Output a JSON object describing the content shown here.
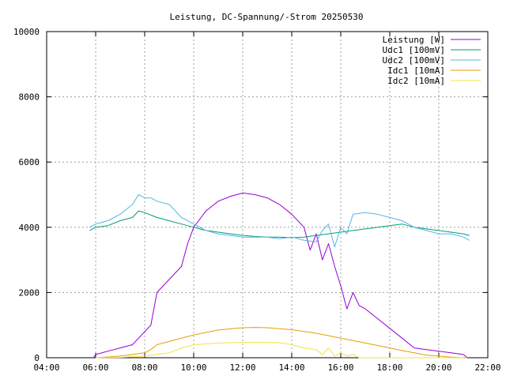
{
  "chart_data": {
    "type": "line",
    "title": "Leistung, DC-Spannung/-Strom 20250530",
    "xlabel": "",
    "ylabel": "",
    "x_ticks": [
      "04:00",
      "06:00",
      "08:00",
      "10:00",
      "12:00",
      "14:00",
      "16:00",
      "18:00",
      "20:00",
      "22:00"
    ],
    "xlim": [
      "04:00",
      "22:00"
    ],
    "y_ticks": [
      "0",
      "2000",
      "4000",
      "6000",
      "8000",
      "10000"
    ],
    "ylim": [
      0,
      10000
    ],
    "grid": true,
    "legend_position": "top-right",
    "series": [
      {
        "name": "Leistung [W]",
        "color": "#9400d3",
        "x": [
          "05:55",
          "06:00",
          "06:30",
          "07:00",
          "07:30",
          "07:45",
          "08:00",
          "08:15",
          "08:30",
          "09:00",
          "09:30",
          "09:45",
          "10:00",
          "10:30",
          "11:00",
          "11:30",
          "12:00",
          "12:30",
          "13:00",
          "13:30",
          "14:00",
          "14:30",
          "14:45",
          "15:00",
          "15:15",
          "15:30",
          "15:45",
          "16:00",
          "16:15",
          "16:30",
          "16:45",
          "17:00",
          "17:30",
          "18:00",
          "18:30",
          "19:00",
          "19:30",
          "20:00",
          "20:30",
          "21:00",
          "21:10"
        ],
        "values": [
          0,
          100,
          200,
          300,
          400,
          600,
          800,
          1000,
          2000,
          2400,
          2800,
          3500,
          4000,
          4500,
          4800,
          4950,
          5050,
          5000,
          4900,
          4700,
          4400,
          4000,
          3300,
          3800,
          3000,
          3500,
          2800,
          2200,
          1500,
          2000,
          1600,
          1500,
          1200,
          900,
          600,
          300,
          250,
          200,
          150,
          100,
          0
        ]
      },
      {
        "name": "Udc1 [100mV]",
        "color": "#009e73",
        "x": [
          "05:45",
          "06:00",
          "06:30",
          "07:00",
          "07:30",
          "07:45",
          "08:00",
          "08:30",
          "09:00",
          "09:30",
          "10:00",
          "10:30",
          "11:00",
          "11:30",
          "12:00",
          "12:30",
          "13:00",
          "13:30",
          "14:00",
          "14:30",
          "15:00",
          "15:30",
          "16:00",
          "16:30",
          "17:00",
          "17:30",
          "18:00",
          "18:30",
          "19:00",
          "19:30",
          "20:00",
          "20:30",
          "21:00",
          "21:15"
        ],
        "values": [
          3900,
          4000,
          4050,
          4200,
          4300,
          4500,
          4450,
          4300,
          4200,
          4100,
          4000,
          3900,
          3850,
          3800,
          3750,
          3720,
          3700,
          3700,
          3680,
          3700,
          3750,
          3800,
          3850,
          3900,
          3950,
          4000,
          4050,
          4100,
          4000,
          3950,
          3900,
          3850,
          3800,
          3750
        ]
      },
      {
        "name": "Udc2 [100mV]",
        "color": "#56b4e9",
        "x": [
          "05:45",
          "06:00",
          "06:30",
          "07:00",
          "07:30",
          "07:45",
          "08:00",
          "08:15",
          "08:30",
          "09:00",
          "09:15",
          "09:30",
          "10:00",
          "10:30",
          "11:00",
          "11:30",
          "12:00",
          "12:30",
          "13:00",
          "13:30",
          "14:00",
          "14:30",
          "15:00",
          "15:15",
          "15:30",
          "15:45",
          "16:00",
          "16:15",
          "16:30",
          "17:00",
          "17:30",
          "18:00",
          "18:30",
          "19:00",
          "19:30",
          "20:00",
          "20:30",
          "21:00",
          "21:15"
        ],
        "values": [
          4000,
          4100,
          4200,
          4400,
          4700,
          5000,
          4900,
          4900,
          4800,
          4700,
          4500,
          4300,
          4100,
          3900,
          3800,
          3750,
          3700,
          3700,
          3700,
          3650,
          3700,
          3600,
          3550,
          3900,
          4100,
          3400,
          4000,
          3800,
          4400,
          4450,
          4400,
          4300,
          4200,
          4000,
          3900,
          3800,
          3800,
          3700,
          3600
        ]
      },
      {
        "name": "Idc1 [10mA]",
        "color": "#e69f00",
        "x": [
          "06:00",
          "07:00",
          "07:30",
          "08:00",
          "08:15",
          "08:30",
          "09:00",
          "10:00",
          "11:00",
          "12:00",
          "12:30",
          "13:00",
          "14:00",
          "15:00",
          "16:00",
          "17:00",
          "18:00",
          "18:30",
          "19:00",
          "19:30",
          "20:00",
          "20:30",
          "21:00",
          "21:10"
        ],
        "values": [
          0,
          50,
          100,
          150,
          250,
          400,
          500,
          700,
          850,
          920,
          930,
          920,
          860,
          750,
          600,
          450,
          300,
          220,
          150,
          80,
          50,
          20,
          0,
          0
        ]
      },
      {
        "name": "Idc2 [10mA]",
        "color": "#f0e442",
        "x": [
          "06:00",
          "07:00",
          "08:00",
          "08:30",
          "09:00",
          "09:30",
          "10:00",
          "11:00",
          "12:00",
          "12:30",
          "13:00",
          "13:30",
          "14:00",
          "14:30",
          "15:00",
          "15:15",
          "15:30",
          "15:45",
          "16:00",
          "16:15",
          "16:30",
          "16:45",
          "17:00",
          "18:00",
          "19:00",
          "20:00",
          "21:00"
        ],
        "values": [
          0,
          10,
          50,
          100,
          150,
          300,
          400,
          450,
          470,
          470,
          470,
          460,
          400,
          300,
          250,
          100,
          300,
          50,
          150,
          50,
          100,
          0,
          0,
          0,
          0,
          0,
          0
        ]
      }
    ]
  }
}
